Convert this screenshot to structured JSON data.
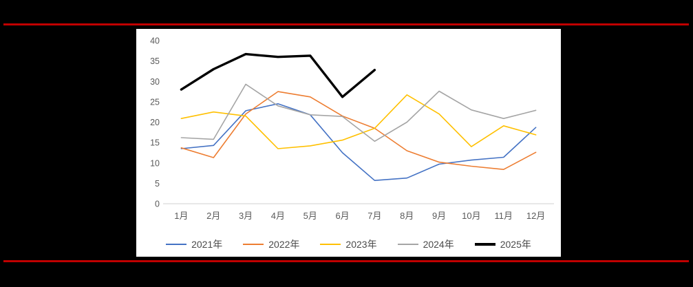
{
  "page": {
    "background_color": "#000000",
    "rule_color": "#C00000",
    "panel_color": "#FFFFFF"
  },
  "chart_data": {
    "type": "line",
    "title": "",
    "xlabel": "",
    "ylabel": "",
    "grid": "off",
    "legend_position": "bottom",
    "ylim": [
      0,
      40
    ],
    "yticks": [
      0,
      5,
      10,
      15,
      20,
      25,
      30,
      35,
      40
    ],
    "categories": [
      "1月",
      "2月",
      "3月",
      "4月",
      "5月",
      "6月",
      "7月",
      "8月",
      "9月",
      "10月",
      "11月",
      "12月"
    ],
    "series": [
      {
        "name": "2021年",
        "color": "#4472C4",
        "line_width": 1.6,
        "values": [
          13.5,
          14.3,
          22.8,
          24.5,
          21.8,
          12.5,
          5.7,
          6.3,
          9.7,
          10.7,
          11.4,
          18.7
        ]
      },
      {
        "name": "2022年",
        "color": "#ED7D31",
        "line_width": 1.6,
        "values": [
          13.7,
          11.3,
          22.0,
          27.5,
          26.2,
          21.5,
          18.5,
          13.0,
          10.2,
          9.2,
          8.4,
          12.6
        ]
      },
      {
        "name": "2023年",
        "color": "#FFC000",
        "line_width": 1.6,
        "values": [
          20.9,
          22.5,
          21.5,
          13.5,
          14.2,
          15.6,
          18.5,
          26.7,
          22.0,
          14.0,
          19.1,
          16.9
        ]
      },
      {
        "name": "2024年",
        "color": "#A5A5A5",
        "line_width": 1.6,
        "values": [
          16.2,
          15.8,
          29.3,
          24.0,
          21.8,
          21.4,
          15.3,
          20.0,
          27.6,
          23.0,
          20.9,
          22.9
        ]
      },
      {
        "name": "2025年",
        "color": "#000000",
        "line_width": 3.4,
        "values": [
          28.0,
          33.0,
          36.7,
          36.0,
          36.3,
          26.2,
          32.8
        ]
      }
    ],
    "axis_text_color": "#595959",
    "axis_line_color": "#D9D9D9"
  }
}
